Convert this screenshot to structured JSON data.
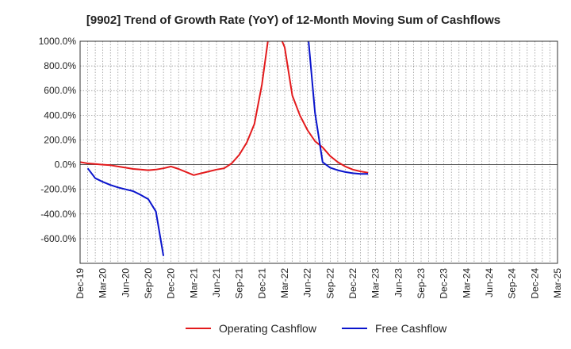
{
  "chart_data": {
    "type": "line",
    "title": "[9902]  Trend of Growth Rate (YoY) of 12-Month Moving Sum of Cashflows",
    "xlabel": "",
    "ylabel": "",
    "ylim": [
      -800,
      1000
    ],
    "y_ticks": [
      {
        "value": 1000,
        "label": "1000.0%"
      },
      {
        "value": 800,
        "label": "800.0%"
      },
      {
        "value": 600,
        "label": "600.0%"
      },
      {
        "value": 400,
        "label": "400.0%"
      },
      {
        "value": 200,
        "label": "200.0%"
      },
      {
        "value": 0,
        "label": "0.0%"
      },
      {
        "value": -200,
        "label": "-200.0%"
      },
      {
        "value": -400,
        "label": "-400.0%"
      },
      {
        "value": -600,
        "label": "-600.0%"
      }
    ],
    "x_tick_labels": [
      "Dec-19",
      "Mar-20",
      "Jun-20",
      "Sep-20",
      "Dec-20",
      "Mar-21",
      "Jun-21",
      "Sep-21",
      "Dec-21",
      "Mar-22",
      "Jun-22",
      "Sep-22",
      "Dec-22",
      "Mar-23",
      "Jun-23",
      "Sep-23",
      "Dec-23",
      "Mar-24",
      "Jun-24",
      "Sep-24",
      "Dec-24",
      "Mar-25"
    ],
    "grid": true,
    "legend_position": "bottom",
    "series": [
      {
        "name": "Operating Cashflow",
        "color": "#e31a1c",
        "points": [
          [
            0,
            20
          ],
          [
            1,
            10
          ],
          [
            2,
            5
          ],
          [
            3,
            0
          ],
          [
            4,
            -5
          ],
          [
            5,
            -15
          ],
          [
            6,
            -25
          ],
          [
            7,
            -35
          ],
          [
            8,
            -40
          ],
          [
            9,
            -45
          ],
          [
            10,
            -40
          ],
          [
            11,
            -30
          ],
          [
            12,
            -15
          ],
          [
            13,
            -35
          ],
          [
            14,
            -60
          ],
          [
            15,
            -85
          ],
          [
            16,
            -70
          ],
          [
            17,
            -55
          ],
          [
            18,
            -40
          ],
          [
            19,
            -30
          ],
          [
            20,
            10
          ],
          [
            21,
            80
          ],
          [
            22,
            180
          ],
          [
            23,
            330
          ],
          [
            24,
            650
          ],
          [
            25,
            1100
          ],
          [
            26,
            1100
          ],
          [
            27,
            950
          ],
          [
            28,
            560
          ],
          [
            29,
            400
          ],
          [
            30,
            280
          ],
          [
            31,
            190
          ],
          [
            32,
            140
          ],
          [
            33,
            70
          ],
          [
            34,
            20
          ],
          [
            35,
            -15
          ],
          [
            36,
            -40
          ],
          [
            37,
            -55
          ],
          [
            38,
            -65
          ]
        ]
      },
      {
        "name": "Free Cashflow",
        "color": "#0a14cc",
        "segments": [
          [
            [
              1,
              -30
            ],
            [
              2,
              -110
            ],
            [
              3,
              -140
            ],
            [
              4,
              -165
            ],
            [
              5,
              -185
            ],
            [
              6,
              -200
            ],
            [
              7,
              -215
            ],
            [
              8,
              -245
            ],
            [
              9,
              -280
            ],
            [
              10,
              -380
            ],
            [
              11,
              -740
            ]
          ],
          [
            [
              30,
              1100
            ],
            [
              31,
              420
            ],
            [
              32,
              20
            ],
            [
              33,
              -25
            ],
            [
              34,
              -45
            ],
            [
              35,
              -60
            ],
            [
              36,
              -70
            ],
            [
              37,
              -75
            ],
            [
              38,
              -75
            ]
          ]
        ]
      }
    ]
  }
}
